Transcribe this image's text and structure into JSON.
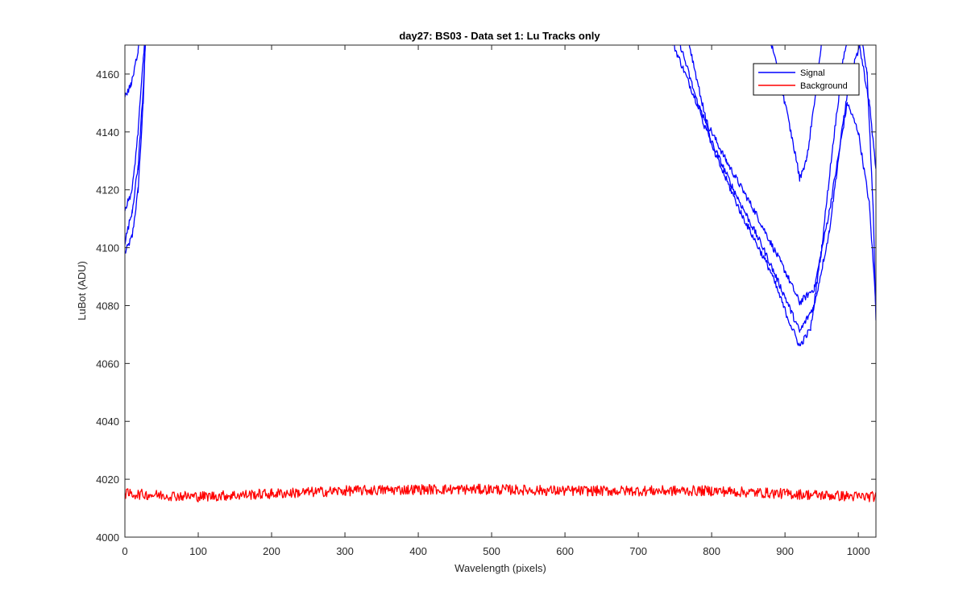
{
  "chart_data": {
    "type": "line",
    "title": "day27: BS03 - Data set 1: Lu Tracks only",
    "xlabel": "Wavelength (pixels)",
    "ylabel": "LuBot (ADU)",
    "xlim": [
      0,
      1024
    ],
    "ylim": [
      4000,
      4170
    ],
    "xticks": [
      0,
      100,
      200,
      300,
      400,
      500,
      600,
      700,
      800,
      900,
      1000
    ],
    "yticks": [
      4000,
      4020,
      4040,
      4060,
      4080,
      4100,
      4120,
      4140,
      4160
    ],
    "xtick_labels": [
      "0",
      "100",
      "200",
      "300",
      "400",
      "500",
      "600",
      "700",
      "800",
      "900",
      "1000"
    ],
    "ytick_labels": [
      "4000",
      "4020",
      "4040",
      "4060",
      "4080",
      "4100",
      "4120",
      "4140",
      "4160"
    ],
    "grid": false,
    "legend_position": "top-right",
    "legend": [
      {
        "label": "Signal",
        "color": "#0000ff"
      },
      {
        "label": "Background",
        "color": "#ff0000"
      }
    ],
    "series": [
      {
        "group": "Signal",
        "color": "#0000ff",
        "noise": 1.2,
        "points": [
          [
            0,
            4098
          ],
          [
            10,
            4104
          ],
          [
            18,
            4120
          ],
          [
            25,
            4150
          ],
          [
            28,
            4172
          ],
          [
            745,
            4172
          ],
          [
            780,
            4150
          ],
          [
            820,
            4130
          ],
          [
            860,
            4112
          ],
          [
            900,
            4092
          ],
          [
            920,
            4081
          ],
          [
            940,
            4086
          ],
          [
            960,
            4112
          ],
          [
            975,
            4135
          ],
          [
            985,
            4150
          ],
          [
            1000,
            4140
          ],
          [
            1015,
            4115
          ],
          [
            1024,
            4080
          ]
        ]
      },
      {
        "group": "Signal",
        "color": "#0000ff",
        "noise": 1.2,
        "points": [
          [
            0,
            4102
          ],
          [
            10,
            4113
          ],
          [
            18,
            4128
          ],
          [
            25,
            4155
          ],
          [
            28,
            4172
          ],
          [
            755,
            4172
          ],
          [
            790,
            4142
          ],
          [
            830,
            4120
          ],
          [
            870,
            4100
          ],
          [
            900,
            4083
          ],
          [
            920,
            4071
          ],
          [
            940,
            4080
          ],
          [
            960,
            4105
          ],
          [
            980,
            4145
          ],
          [
            990,
            4160
          ],
          [
            1005,
            4172
          ],
          [
            1012,
            4160
          ],
          [
            1020,
            4115
          ],
          [
            1024,
            4076
          ]
        ]
      },
      {
        "group": "Signal",
        "color": "#0000ff",
        "noise": 1.2,
        "points": [
          [
            0,
            4113
          ],
          [
            10,
            4120
          ],
          [
            18,
            4140
          ],
          [
            25,
            4165
          ],
          [
            27,
            4172
          ],
          [
            768,
            4172
          ],
          [
            800,
            4135
          ],
          [
            840,
            4112
          ],
          [
            880,
            4092
          ],
          [
            905,
            4075
          ],
          [
            920,
            4066
          ],
          [
            935,
            4072
          ],
          [
            950,
            4100
          ],
          [
            965,
            4135
          ],
          [
            980,
            4166
          ],
          [
            985,
            4172
          ],
          [
            1040,
            4172
          ]
        ]
      },
      {
        "group": "Signal",
        "color": "#0000ff",
        "noise": 1.2,
        "points": [
          [
            0,
            4152
          ],
          [
            8,
            4156
          ],
          [
            18,
            4168
          ],
          [
            20,
            4172
          ],
          [
            1000,
            4172
          ],
          [
            1015,
            4150
          ],
          [
            1024,
            4127
          ]
        ]
      },
      {
        "group": "Signal",
        "color": "#0000ff",
        "noise": 1.2,
        "points": [
          [
            880,
            4172
          ],
          [
            900,
            4150
          ],
          [
            915,
            4131
          ],
          [
            920,
            4124
          ],
          [
            930,
            4131
          ],
          [
            945,
            4160
          ],
          [
            950,
            4172
          ]
        ]
      },
      {
        "group": "Background",
        "color": "#ff0000",
        "noise": 1.8,
        "points": [
          [
            0,
            4015
          ],
          [
            100,
            4014
          ],
          [
            200,
            4015
          ],
          [
            300,
            4016
          ],
          [
            400,
            4016.5
          ],
          [
            500,
            4016.5
          ],
          [
            600,
            4016
          ],
          [
            700,
            4016
          ],
          [
            800,
            4016
          ],
          [
            900,
            4015
          ],
          [
            1000,
            4014
          ],
          [
            1024,
            4014
          ]
        ]
      }
    ]
  }
}
